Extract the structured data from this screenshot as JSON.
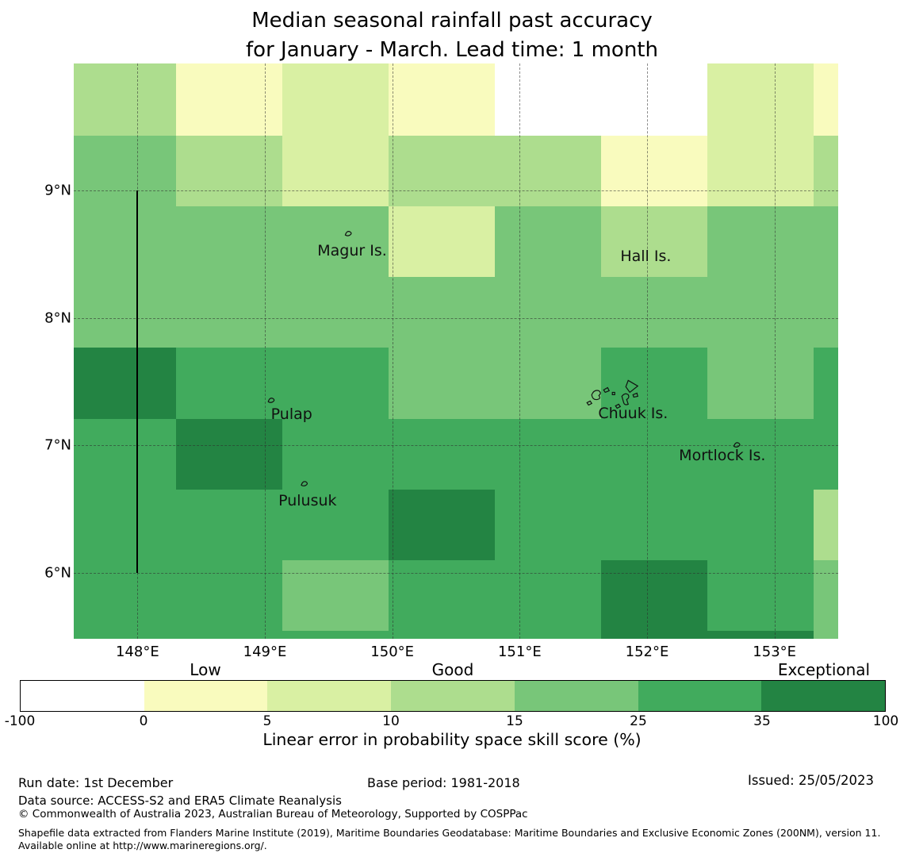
{
  "title": {
    "line1": "Median seasonal rainfall past accuracy",
    "line2": "for January - March. Lead time: 1 month"
  },
  "chart_data": {
    "type": "heatmap",
    "title": "Median seasonal rainfall past accuracy for January - March. Lead time: 1 month",
    "lon_range": [
      147.5,
      153.5
    ],
    "lat_range": [
      5.48,
      10.0
    ],
    "lon_edges": [
      147.5,
      148.3,
      149.135,
      149.97,
      150.805,
      151.64,
      152.475,
      153.31,
      153.5
    ],
    "lat_edges": [
      10.0,
      9.43,
      8.875,
      8.32,
      7.765,
      7.21,
      6.655,
      6.1,
      5.545,
      5.48
    ],
    "bins": [
      {
        "range": "-100 to 0",
        "color": "#ffffff"
      },
      {
        "range": "0 to 5",
        "color": "#f9fbbe"
      },
      {
        "range": "5 to 10",
        "color": "#d9f0a3"
      },
      {
        "range": "10 to 15",
        "color": "#addd8e"
      },
      {
        "range": "15 to 25",
        "color": "#78c679"
      },
      {
        "range": "25 to 35",
        "color": "#41ab5d"
      },
      {
        "range": "35 to 100",
        "color": "#238443"
      }
    ],
    "values": [
      [
        3,
        1,
        2,
        1,
        0,
        0,
        2,
        1
      ],
      [
        4,
        3,
        2,
        3,
        3,
        1,
        2,
        3
      ],
      [
        4,
        4,
        4,
        2,
        4,
        3,
        4,
        4
      ],
      [
        4,
        4,
        4,
        4,
        4,
        4,
        4,
        4
      ],
      [
        6,
        5,
        5,
        4,
        4,
        5,
        4,
        5
      ],
      [
        5,
        6,
        5,
        5,
        5,
        5,
        5,
        5
      ],
      [
        5,
        5,
        5,
        6,
        5,
        5,
        5,
        3
      ],
      [
        5,
        5,
        4,
        5,
        5,
        6,
        5,
        4
      ],
      [
        5,
        5,
        5,
        5,
        5,
        6,
        6,
        4
      ]
    ],
    "xticks": [
      {
        "value": 148,
        "label": "148°E"
      },
      {
        "value": 149,
        "label": "149°E"
      },
      {
        "value": 150,
        "label": "150°E"
      },
      {
        "value": 151,
        "label": "151°E"
      },
      {
        "value": 152,
        "label": "152°E"
      },
      {
        "value": 153,
        "label": "153°E"
      }
    ],
    "yticks": [
      {
        "value": 9,
        "label": "9°N"
      },
      {
        "value": 8,
        "label": "8°N"
      },
      {
        "value": 7,
        "label": "7°N"
      },
      {
        "value": 6,
        "label": "6°N"
      }
    ],
    "grid": {
      "x_deg": [
        148,
        149,
        150,
        151,
        152,
        153
      ],
      "y_deg": [
        6,
        7,
        8,
        9
      ]
    },
    "boundary_line": {
      "lon": 148,
      "lat_from": 6.0,
      "lat_to": 9.0
    },
    "islands": [
      {
        "name": "Magur Is.",
        "label_lon": 149.685,
        "label_lat": 8.53,
        "mark_lon": 149.65,
        "mark_lat": 8.665,
        "mark": "speck"
      },
      {
        "name": "Hall Is.",
        "label_lon": 151.99,
        "label_lat": 8.485,
        "mark": "none"
      },
      {
        "name": "Pulap",
        "label_lon": 149.21,
        "label_lat": 7.245,
        "mark_lon": 149.045,
        "mark_lat": 7.355,
        "mark": "speck"
      },
      {
        "name": "Chuuk Is.",
        "label_lon": 151.89,
        "label_lat": 7.25,
        "mark_lon": 151.74,
        "mark_lat": 7.41,
        "mark": "cluster"
      },
      {
        "name": "Mortlock Is.",
        "label_lon": 152.59,
        "label_lat": 6.92,
        "mark_lon": 152.7,
        "mark_lat": 7.005,
        "mark": "speck"
      },
      {
        "name": "Pulusuk",
        "label_lon": 149.335,
        "label_lat": 6.565,
        "mark_lon": 149.305,
        "mark_lat": 6.7,
        "mark": "speck"
      }
    ]
  },
  "colorbar": {
    "tick_labels": [
      "-100",
      "0",
      "5",
      "10",
      "15",
      "25",
      "35",
      "100"
    ],
    "categories": [
      {
        "label": "Low",
        "segment": 1
      },
      {
        "label": "Good",
        "segment": 3
      },
      {
        "label": "Exceptional",
        "segment": 6
      }
    ],
    "axis_label": "Linear error in probability space skill score (%)"
  },
  "footer": {
    "run_date": "Run date: 1st December",
    "base_period": "Base period: 1981-2018",
    "issued": "Issued: 25/05/2023",
    "data_source": "Data source: ACCESS-S2 and ERA5 Climate Reanalysis",
    "copyright": "© Commonwealth of Australia 2023, Australian Bureau of Meteorology, Supported by COSPPac",
    "shapefile_note": "Shapefile data extracted from Flanders Marine Institute (2019), Maritime Boundaries Geodatabase: Maritime Boundaries and Exclusive Economic Zones (200NM), version 11. Available online at http://www.marineregions.org/."
  }
}
